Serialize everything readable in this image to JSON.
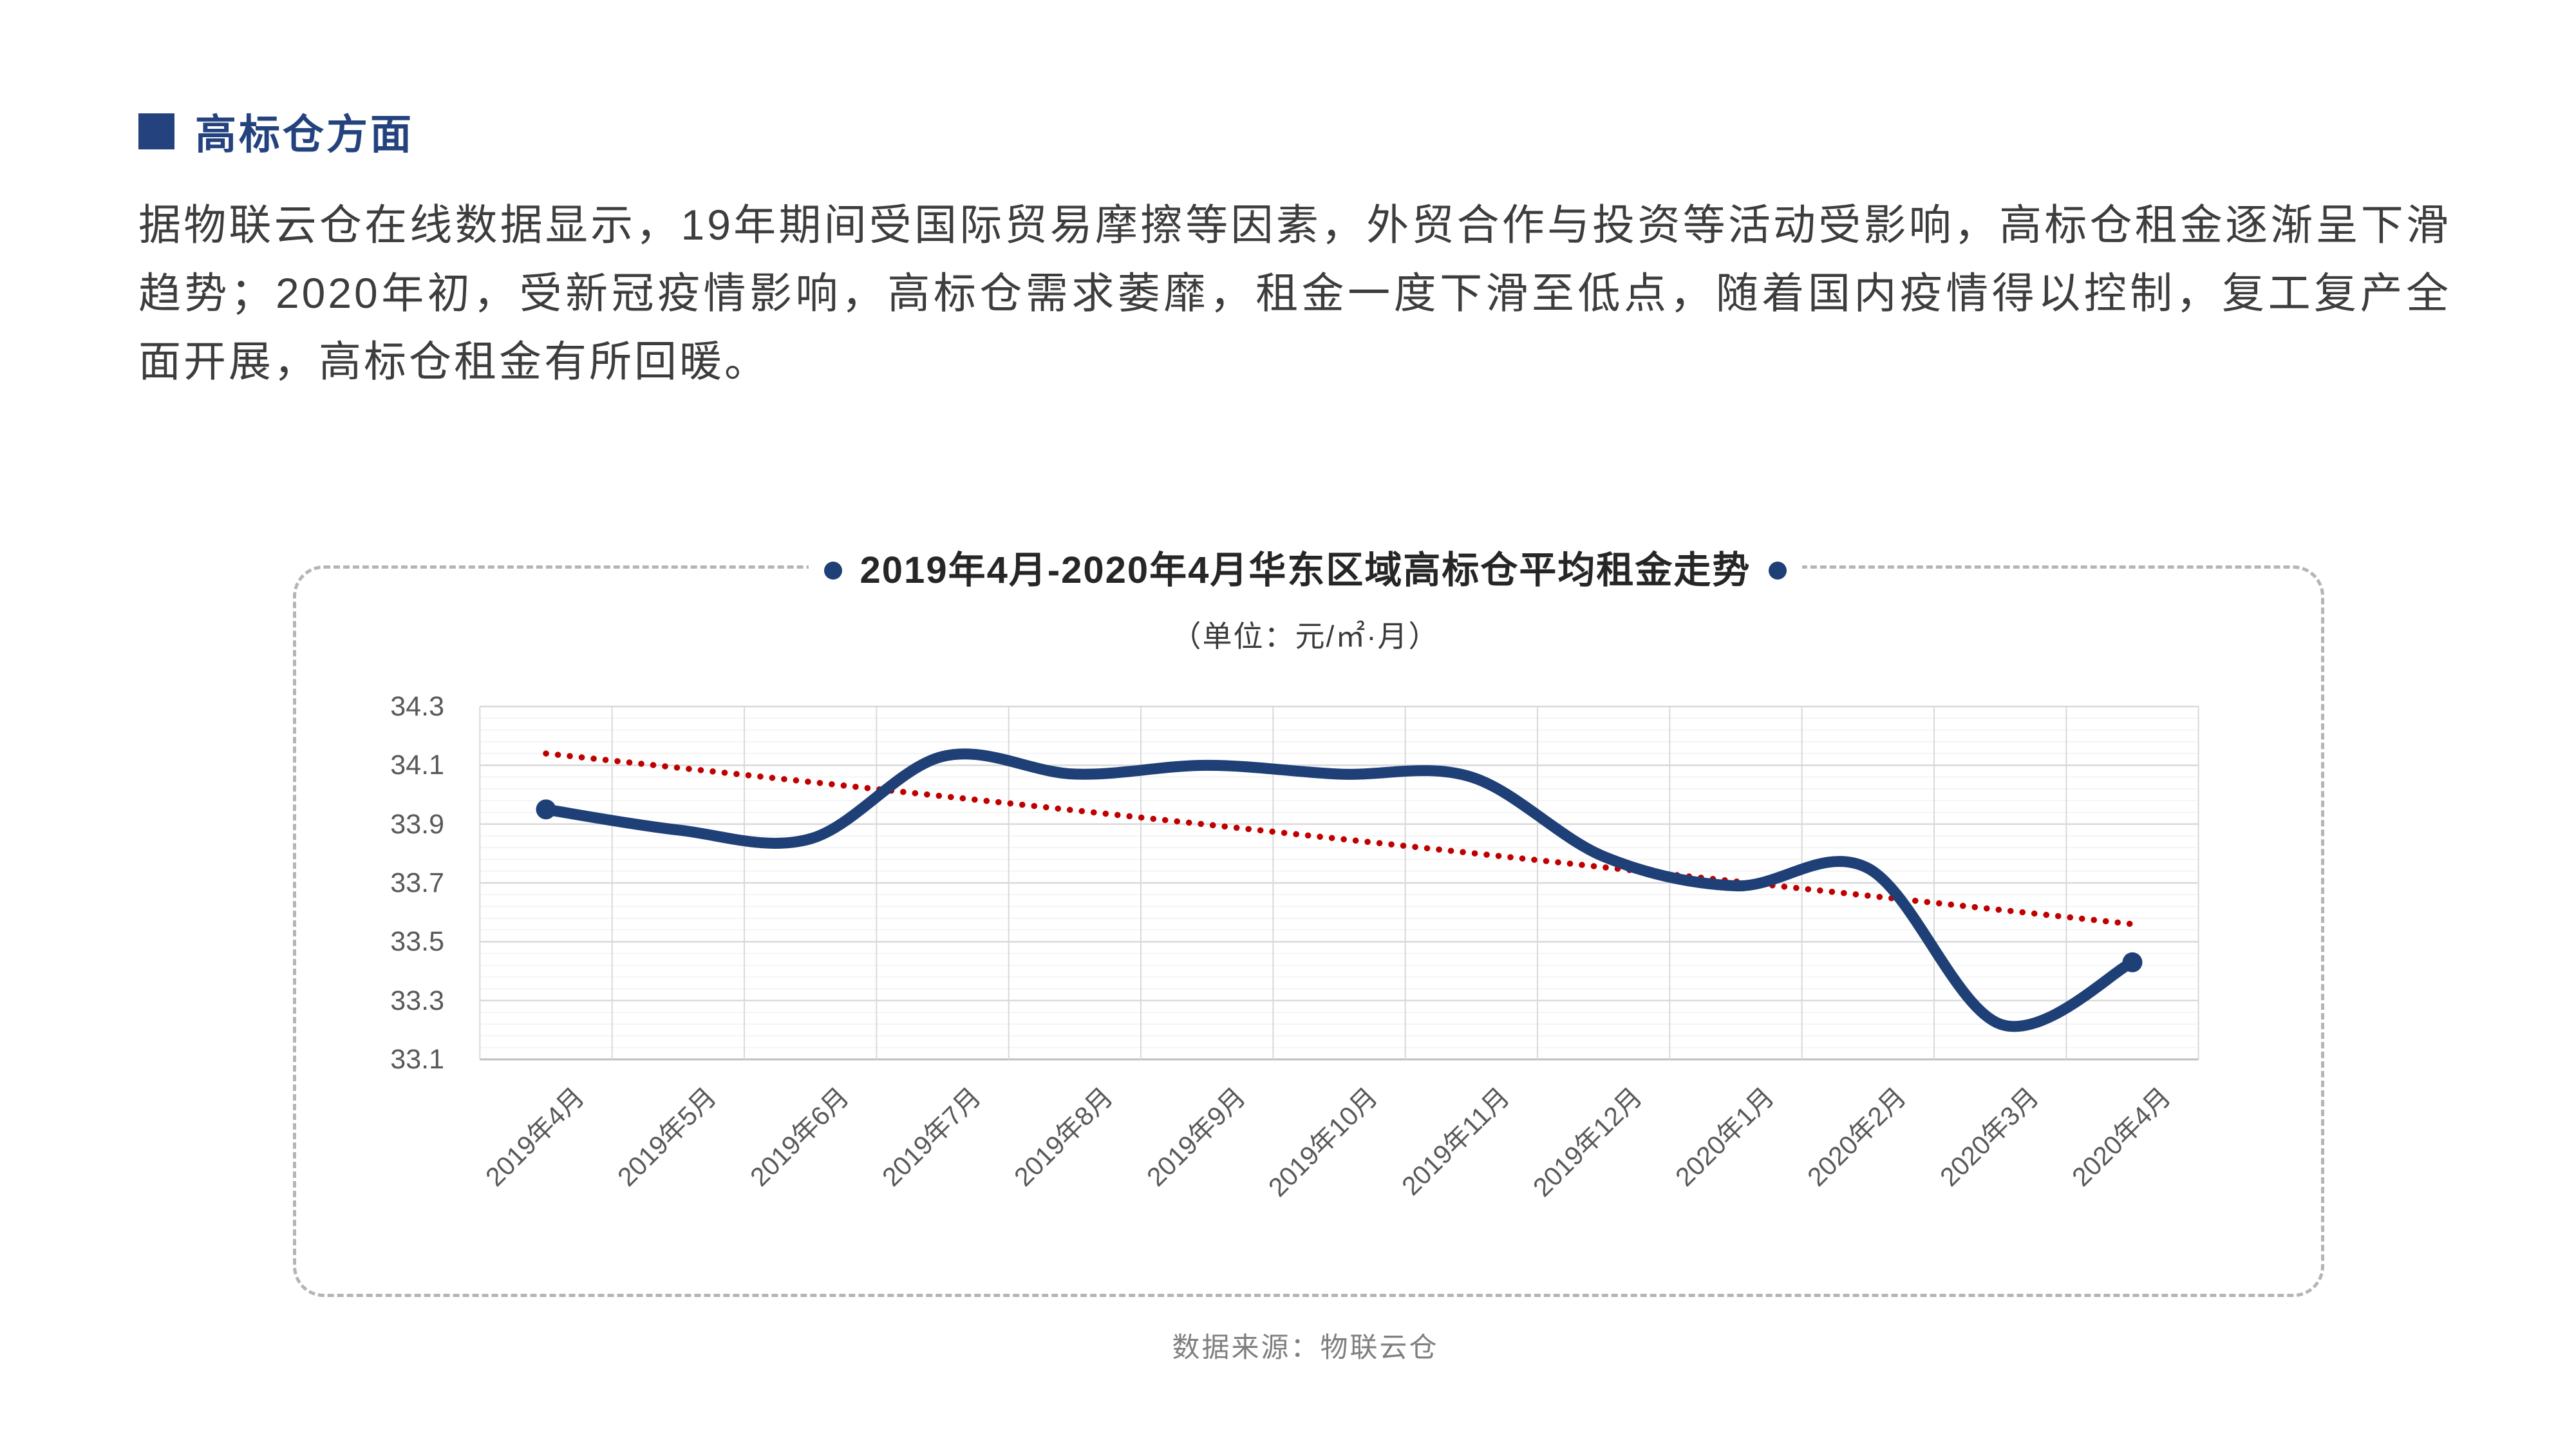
{
  "colors": {
    "navy": "#24437E",
    "line_navy": "#1F4077",
    "trend_red": "#C00000",
    "grid_major": "#D9D9D9",
    "grid_minor": "#F2F2F2",
    "axis_line": "#BFBFBF",
    "tick_label": "#595959",
    "border_dash": "#B5B5B5"
  },
  "header": {
    "title": "高标仓方面"
  },
  "paragraph": {
    "text": "据物联云仓在线数据显示，19年期间受国际贸易摩擦等因素，外贸合作与投资等活动受影响，高标仓租金逐渐呈下滑趋势；2020年初，受新冠疫情影响，高标仓需求萎靡，租金一度下滑至低点，随着国内疫情得以控制，复工复产全面开展，高标仓租金有所回暖。"
  },
  "chart_card": {
    "title": "2019年4月-2020年4月华东区域高标仓平均租金走势",
    "subtitle": "（单位：元/㎡·月）",
    "source_note": "数据来源：物联云仓"
  },
  "chart_data": {
    "type": "line",
    "title": "2019年4月-2020年4月华东区域高标仓平均租金走势",
    "unit_label": "（单位：元/㎡·月）",
    "categories": [
      "2019年4月",
      "2019年5月",
      "2019年6月",
      "2019年7月",
      "2019年8月",
      "2019年9月",
      "2019年10月",
      "2019年11月",
      "2019年12月",
      "2020年1月",
      "2020年2月",
      "2020年3月",
      "2020年4月"
    ],
    "series": [
      {
        "name": "华东区域高标仓平均租金",
        "color": "#1F4077",
        "smooth": true,
        "marker_indices": [
          0,
          12
        ],
        "values": [
          33.95,
          33.88,
          33.85,
          34.13,
          34.07,
          34.1,
          34.07,
          34.06,
          33.79,
          33.69,
          33.75,
          33.22,
          33.43
        ]
      }
    ],
    "trendline": {
      "color": "#C00000",
      "style": "dotted",
      "start": 34.14,
      "end": 33.56
    },
    "ylim": [
      33.1,
      34.3
    ],
    "yticks": [
      34.3,
      34.1,
      33.9,
      33.7,
      33.5,
      33.3,
      33.1
    ],
    "y_minor_step": 0.04,
    "grid": true,
    "legend": "none",
    "x_label_rotation": -45
  }
}
